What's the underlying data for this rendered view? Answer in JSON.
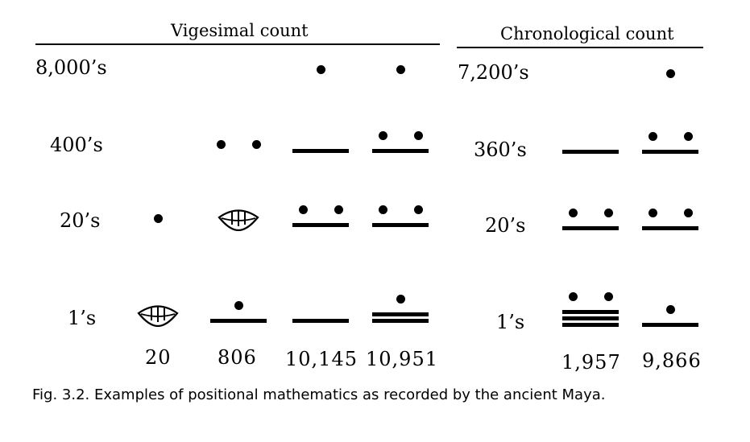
{
  "headers": {
    "vigesimal": "Vigesimal count",
    "chronological": "Chronological count"
  },
  "vigesimal": {
    "places": [
      "8,000’s",
      "400’s",
      "20’s",
      "1’s"
    ],
    "examples": [
      {
        "value": "20",
        "digits": [
          null,
          null,
          1,
          0
        ]
      },
      {
        "value": "806",
        "digits": [
          null,
          2,
          0,
          6
        ]
      },
      {
        "value": "10,145",
        "digits": [
          1,
          5,
          7,
          5
        ]
      },
      {
        "value": "10,951",
        "digits": [
          1,
          7,
          7,
          11
        ]
      }
    ]
  },
  "chronological": {
    "places": [
      "7,200’s",
      "360’s",
      "20’s",
      "1’s"
    ],
    "examples": [
      {
        "value": "1,957",
        "digits": [
          null,
          5,
          7,
          17
        ]
      },
      {
        "value": "9,866",
        "digits": [
          1,
          7,
          7,
          6
        ]
      }
    ]
  },
  "caption": "Fig. 3.2. Examples of positional mathematics as recorded by the ancient Maya."
}
